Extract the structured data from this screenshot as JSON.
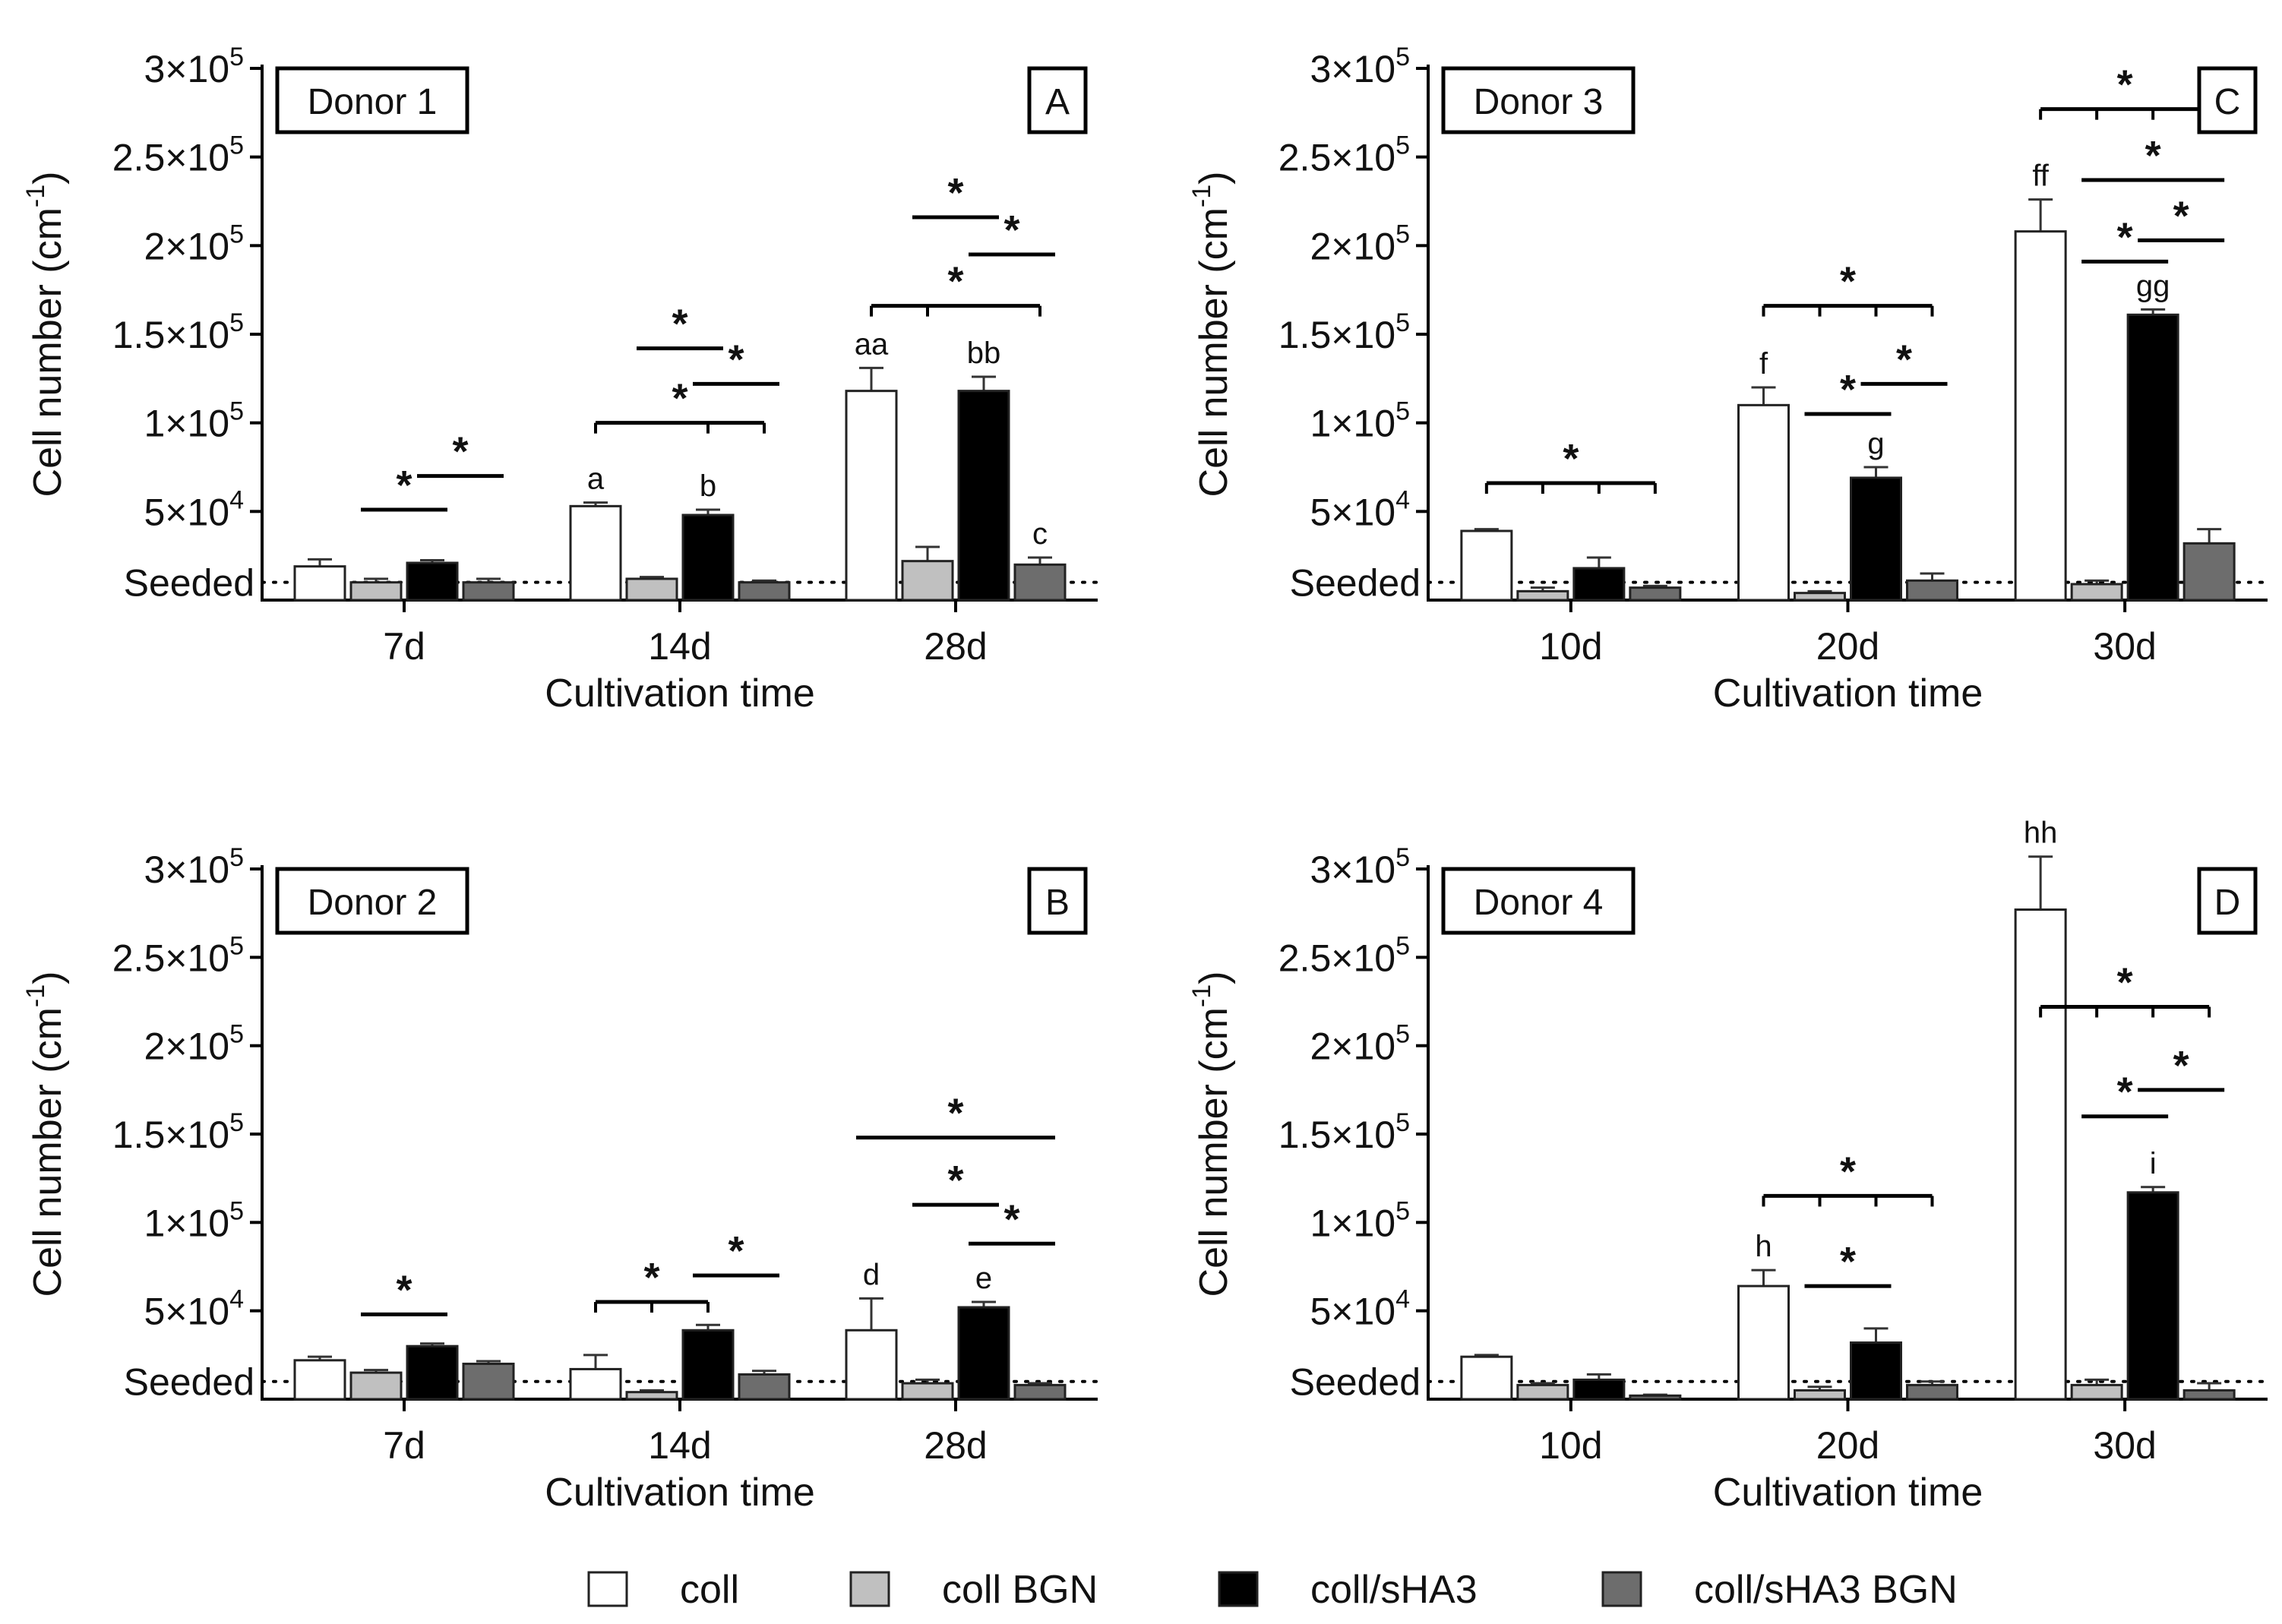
{
  "chart_data": [
    {
      "type": "bar",
      "panel": "A",
      "donor_label": "Donor 1",
      "xlabel": "Cultivation time",
      "ylabel": "Cell number (cm",
      "ylabel_sup": "-1",
      "ylabel_end": ")",
      "ylim": [
        0,
        300000
      ],
      "yticks": [
        {
          "value": 50000,
          "base": "5×10",
          "exp": "4"
        },
        {
          "value": 100000,
          "base": "1×10",
          "exp": "5"
        },
        {
          "value": 150000,
          "base": "1.5×10",
          "exp": "5"
        },
        {
          "value": 200000,
          "base": "2×10",
          "exp": "5"
        },
        {
          "value": 250000,
          "base": "2.5×10",
          "exp": "5"
        },
        {
          "value": 300000,
          "base": "3×10",
          "exp": "5"
        }
      ],
      "seeded": {
        "label": "Seeded",
        "value": 10000
      },
      "categories": [
        "7d",
        "14d",
        "28d"
      ],
      "series": [
        {
          "name": "coll",
          "values": [
            19000,
            53000,
            118000
          ],
          "errors": [
            4000,
            2000,
            13000
          ]
        },
        {
          "name": "coll BGN",
          "values": [
            10000,
            12000,
            22000
          ],
          "errors": [
            2000,
            1000,
            8000
          ]
        },
        {
          "name": "coll/sHA3",
          "values": [
            21000,
            48000,
            118000
          ],
          "errors": [
            1500,
            3000,
            8000
          ]
        },
        {
          "name": "coll/sHA3 BGN",
          "values": [
            10000,
            10000,
            20000
          ],
          "errors": [
            2000,
            1000,
            4000
          ]
        }
      ],
      "letters": [
        {
          "cat": 1,
          "bar": 0,
          "text": "a"
        },
        {
          "cat": 1,
          "bar": 2,
          "text": "b"
        },
        {
          "cat": 2,
          "bar": 0,
          "text": "aa"
        },
        {
          "cat": 2,
          "bar": 2,
          "text": "bb"
        },
        {
          "cat": 2,
          "bar": 3,
          "text": "c"
        }
      ],
      "significance": [
        {
          "cat": 0,
          "from": 1,
          "to": 2,
          "y": 51000,
          "ticks": [],
          "text": "*"
        },
        {
          "cat": 0,
          "from": 2,
          "to": 3,
          "y": 70000,
          "ticks": [],
          "text": "*"
        },
        {
          "cat": 1,
          "from": 0,
          "to": 3,
          "y": 100000,
          "ticks": [
            0,
            2,
            3
          ],
          "text": "*"
        },
        {
          "cat": 1,
          "from": 1,
          "to": 2,
          "y": 142000,
          "ticks": [],
          "text": "*"
        },
        {
          "cat": 1,
          "from": 2,
          "to": 3,
          "y": 122000,
          "ticks": [],
          "text": "*"
        },
        {
          "cat": 2,
          "from": 0,
          "to": 3,
          "y": 166000,
          "ticks": [
            0,
            1,
            3
          ],
          "text": "*"
        },
        {
          "cat": 2,
          "from": 1,
          "to": 2,
          "y": 216000,
          "ticks": [],
          "text": "*"
        },
        {
          "cat": 2,
          "from": 2,
          "to": 3,
          "y": 195000,
          "ticks": [],
          "text": "*"
        }
      ]
    },
    {
      "type": "bar",
      "panel": "B",
      "donor_label": "Donor 2",
      "xlabel": "Cultivation time",
      "ylabel": "Cell number (cm",
      "ylabel_sup": "-1",
      "ylabel_end": ")",
      "ylim": [
        0,
        300000
      ],
      "yticks": [
        {
          "value": 50000,
          "base": "5×10",
          "exp": "4"
        },
        {
          "value": 100000,
          "base": "1×10",
          "exp": "5"
        },
        {
          "value": 150000,
          "base": "1.5×10",
          "exp": "5"
        },
        {
          "value": 200000,
          "base": "2×10",
          "exp": "5"
        },
        {
          "value": 250000,
          "base": "2.5×10",
          "exp": "5"
        },
        {
          "value": 300000,
          "base": "3×10",
          "exp": "5"
        }
      ],
      "seeded": {
        "label": "Seeded",
        "value": 10000
      },
      "categories": [
        "7d",
        "14d",
        "28d"
      ],
      "series": [
        {
          "name": "coll",
          "values": [
            22000,
            17000,
            39000
          ],
          "errors": [
            2000,
            8000,
            18000
          ]
        },
        {
          "name": "coll BGN",
          "values": [
            15000,
            4000,
            9000
          ],
          "errors": [
            1500,
            1000,
            2000
          ]
        },
        {
          "name": "coll/sHA3",
          "values": [
            30000,
            39000,
            52000
          ],
          "errors": [
            1500,
            3000,
            3000
          ]
        },
        {
          "name": "coll/sHA3 BGN",
          "values": [
            20000,
            14000,
            8000
          ],
          "errors": [
            1500,
            2000,
            1000
          ]
        }
      ],
      "letters": [
        {
          "cat": 2,
          "bar": 0,
          "text": "d"
        },
        {
          "cat": 2,
          "bar": 2,
          "text": "e"
        }
      ],
      "significance": [
        {
          "cat": 0,
          "from": 1,
          "to": 2,
          "y": 48000,
          "ticks": [],
          "text": "*"
        },
        {
          "cat": 1,
          "from": 0,
          "to": 2,
          "y": 55000,
          "ticks": [
            0,
            1,
            2
          ],
          "text": "*"
        },
        {
          "cat": 1,
          "from": 2,
          "to": 3,
          "y": 70000,
          "ticks": [],
          "text": "*"
        },
        {
          "cat": 2,
          "from": 0,
          "to": 3,
          "y": 148000,
          "ticks": [],
          "text": "*"
        },
        {
          "cat": 2,
          "from": 1,
          "to": 2,
          "y": 110000,
          "ticks": [],
          "text": "*"
        },
        {
          "cat": 2,
          "from": 2,
          "to": 3,
          "y": 88000,
          "ticks": [],
          "text": "*"
        }
      ]
    },
    {
      "type": "bar",
      "panel": "C",
      "donor_label": "Donor 3",
      "xlabel": "Cultivation time",
      "ylabel": "Cell number (cm",
      "ylabel_sup": "-1",
      "ylabel_end": ")",
      "ylim": [
        0,
        300000
      ],
      "yticks": [
        {
          "value": 50000,
          "base": "5×10",
          "exp": "4"
        },
        {
          "value": 100000,
          "base": "1×10",
          "exp": "5"
        },
        {
          "value": 150000,
          "base": "1.5×10",
          "exp": "5"
        },
        {
          "value": 200000,
          "base": "2×10",
          "exp": "5"
        },
        {
          "value": 250000,
          "base": "2.5×10",
          "exp": "5"
        },
        {
          "value": 300000,
          "base": "3×10",
          "exp": "5"
        }
      ],
      "seeded": {
        "label": "Seeded",
        "value": 10000
      },
      "categories": [
        "10d",
        "20d",
        "30d"
      ],
      "series": [
        {
          "name": "coll",
          "values": [
            39000,
            110000,
            208000
          ],
          "errors": [
            1000,
            10000,
            18000
          ]
        },
        {
          "name": "coll BGN",
          "values": [
            5000,
            4000,
            9000
          ],
          "errors": [
            2000,
            1000,
            2000
          ]
        },
        {
          "name": "coll/sHA3",
          "values": [
            18000,
            69000,
            161000
          ],
          "errors": [
            6000,
            6000,
            3000
          ]
        },
        {
          "name": "coll/sHA3 BGN",
          "values": [
            7000,
            11000,
            32000
          ],
          "errors": [
            1000,
            4000,
            8000
          ]
        }
      ],
      "letters": [
        {
          "cat": 1,
          "bar": 0,
          "text": "f"
        },
        {
          "cat": 1,
          "bar": 2,
          "text": "g"
        },
        {
          "cat": 2,
          "bar": 0,
          "text": "ff"
        },
        {
          "cat": 2,
          "bar": 2,
          "text": "gg"
        }
      ],
      "significance": [
        {
          "cat": 0,
          "from": 0,
          "to": 3,
          "y": 66000,
          "ticks": [
            0,
            1,
            2,
            3
          ],
          "text": "*"
        },
        {
          "cat": 1,
          "from": 0,
          "to": 3,
          "y": 166000,
          "ticks": [
            0,
            1,
            2,
            3
          ],
          "text": "*"
        },
        {
          "cat": 1,
          "from": 1,
          "to": 2,
          "y": 105000,
          "ticks": [],
          "text": "*"
        },
        {
          "cat": 1,
          "from": 2,
          "to": 3,
          "y": 122000,
          "ticks": [],
          "text": "*"
        },
        {
          "cat": 2,
          "from": 0,
          "to": 3,
          "y": 277000,
          "ticks": [
            0,
            1,
            2,
            3
          ],
          "text": "*"
        },
        {
          "cat": 2,
          "from": 1,
          "to": 3,
          "y": 237000,
          "ticks": [],
          "text": "*"
        },
        {
          "cat": 2,
          "from": 1,
          "to": 2,
          "y": 191000,
          "ticks": [],
          "text": "*"
        },
        {
          "cat": 2,
          "from": 2,
          "to": 3,
          "y": 203000,
          "ticks": [],
          "text": "*"
        }
      ]
    },
    {
      "type": "bar",
      "panel": "D",
      "donor_label": "Donor 4",
      "xlabel": "Cultivation time",
      "ylabel": "Cell number (cm",
      "ylabel_sup": "-1",
      "ylabel_end": ")",
      "ylim": [
        0,
        300000
      ],
      "yticks": [
        {
          "value": 50000,
          "base": "5×10",
          "exp": "4"
        },
        {
          "value": 100000,
          "base": "1×10",
          "exp": "5"
        },
        {
          "value": 150000,
          "base": "1.5×10",
          "exp": "5"
        },
        {
          "value": 200000,
          "base": "2×10",
          "exp": "5"
        },
        {
          "value": 250000,
          "base": "2.5×10",
          "exp": "5"
        },
        {
          "value": 300000,
          "base": "3×10",
          "exp": "5"
        }
      ],
      "seeded": {
        "label": "Seeded",
        "value": 10000
      },
      "categories": [
        "10d",
        "20d",
        "30d"
      ],
      "series": [
        {
          "name": "coll",
          "values": [
            24000,
            64000,
            277000
          ],
          "errors": [
            1000,
            9000,
            30000
          ]
        },
        {
          "name": "coll BGN",
          "values": [
            8000,
            5000,
            8000
          ],
          "errors": [
            1000,
            2000,
            3000
          ]
        },
        {
          "name": "coll/sHA3",
          "values": [
            11000,
            32000,
            117000
          ],
          "errors": [
            3000,
            8000,
            3000
          ]
        },
        {
          "name": "coll/sHA3 BGN",
          "values": [
            2000,
            8000,
            5000
          ],
          "errors": [
            500,
            2000,
            4000
          ]
        }
      ],
      "letters": [
        {
          "cat": 1,
          "bar": 0,
          "text": "h"
        },
        {
          "cat": 2,
          "bar": 0,
          "text": "hh"
        },
        {
          "cat": 2,
          "bar": 2,
          "text": "i"
        }
      ],
      "significance": [
        {
          "cat": 1,
          "from": 0,
          "to": 3,
          "y": 115000,
          "ticks": [
            0,
            1,
            2,
            3
          ],
          "text": "*"
        },
        {
          "cat": 1,
          "from": 1,
          "to": 2,
          "y": 64000,
          "ticks": [],
          "text": "*"
        },
        {
          "cat": 2,
          "from": 0,
          "to": 3,
          "y": 222000,
          "ticks": [
            0,
            1,
            2,
            3
          ],
          "text": "*"
        },
        {
          "cat": 2,
          "from": 1,
          "to": 2,
          "y": 160000,
          "ticks": [],
          "text": "*"
        },
        {
          "cat": 2,
          "from": 2,
          "to": 3,
          "y": 175000,
          "ticks": [],
          "text": "*"
        }
      ]
    }
  ],
  "legend": [
    {
      "name": "coll",
      "color": "#ffffff"
    },
    {
      "name": "coll BGN",
      "color": "#c0c0c0"
    },
    {
      "name": "coll/sHA3",
      "color": "#000000"
    },
    {
      "name": "coll/sHA3 BGN",
      "color": "#6d6d6d"
    }
  ]
}
